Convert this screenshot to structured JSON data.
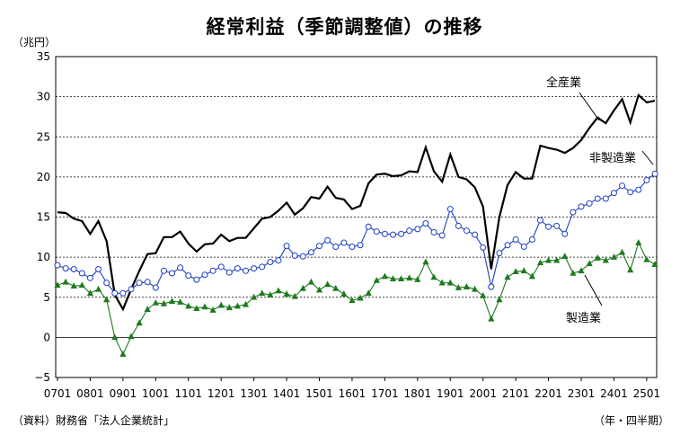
{
  "chart_data": {
    "type": "line",
    "title": "経常利益（季節調整値）の推移",
    "ylabel": "（兆円）",
    "xlabel": "（年・四半期）",
    "source": "（資料）財務省「法人企業統計」",
    "ylim": [
      -5,
      35
    ],
    "yticks": [
      -5,
      0,
      5,
      10,
      15,
      20,
      25,
      30,
      35
    ],
    "x_tick_labels": [
      "0701",
      "0801",
      "0901",
      "1001",
      "1101",
      "1201",
      "1301",
      "1401",
      "1501",
      "1601",
      "1701",
      "1801",
      "1901",
      "2001",
      "2101",
      "2201",
      "2301",
      "2401",
      "2501"
    ],
    "x": [
      "0701",
      "0702",
      "0703",
      "0704",
      "0801",
      "0802",
      "0803",
      "0804",
      "0901",
      "0902",
      "0903",
      "0904",
      "1001",
      "1002",
      "1003",
      "1004",
      "1101",
      "1102",
      "1103",
      "1104",
      "1201",
      "1202",
      "1203",
      "1204",
      "1301",
      "1302",
      "1303",
      "1304",
      "1401",
      "1402",
      "1403",
      "1404",
      "1501",
      "1502",
      "1503",
      "1504",
      "1601",
      "1602",
      "1603",
      "1604",
      "1701",
      "1702",
      "1703",
      "1704",
      "1801",
      "1802",
      "1803",
      "1804",
      "1901",
      "1902",
      "1903",
      "1904",
      "2001",
      "2002",
      "2003",
      "2004",
      "2101",
      "2102",
      "2103",
      "2104",
      "2201",
      "2202",
      "2203",
      "2204",
      "2301",
      "2302",
      "2303",
      "2304",
      "2401",
      "2402",
      "2403",
      "2404",
      "2501",
      "2502"
    ],
    "grid": "horizontal",
    "series": [
      {
        "name": "全産業",
        "color": "#000000",
        "marker": "none",
        "values": [
          15.6,
          15.5,
          14.8,
          14.5,
          12.9,
          14.5,
          12.0,
          5.3,
          3.5,
          6.0,
          8.3,
          10.4,
          10.5,
          12.5,
          12.5,
          13.2,
          11.7,
          10.7,
          11.6,
          11.7,
          12.8,
          12.0,
          12.4,
          12.4,
          13.6,
          14.8,
          15.0,
          15.8,
          16.8,
          15.3,
          16.1,
          17.5,
          17.3,
          18.8,
          17.4,
          17.2,
          16.0,
          16.4,
          19.2,
          20.3,
          20.4,
          20.1,
          20.2,
          20.7,
          20.6,
          23.7,
          20.7,
          19.4,
          22.8,
          20.0,
          19.7,
          18.7,
          16.3,
          8.5,
          15.0,
          19.0,
          20.6,
          19.8,
          19.8,
          23.9,
          23.6,
          23.4,
          23.0,
          23.6,
          24.6,
          26.1,
          27.4,
          26.7,
          28.3,
          29.7,
          26.8,
          30.2,
          29.3,
          29.5
        ]
      },
      {
        "name": "非製造業",
        "color": "#1f3fbf",
        "marker": "circle-open",
        "values": [
          9.0,
          8.6,
          8.5,
          8.0,
          7.4,
          8.5,
          6.8,
          5.5,
          5.5,
          6.0,
          6.8,
          6.9,
          6.2,
          8.3,
          8.0,
          8.7,
          7.7,
          7.2,
          7.8,
          8.3,
          8.8,
          8.1,
          8.6,
          8.3,
          8.6,
          8.8,
          9.4,
          9.6,
          11.4,
          10.2,
          10.1,
          10.6,
          11.4,
          12.1,
          11.3,
          11.8,
          11.3,
          11.5,
          13.8,
          13.2,
          12.9,
          12.8,
          12.9,
          13.3,
          13.5,
          14.2,
          13.1,
          12.7,
          16.0,
          13.9,
          13.3,
          12.8,
          11.2,
          6.3,
          10.5,
          11.5,
          12.2,
          11.3,
          12.2,
          14.6,
          13.8,
          13.9,
          12.9,
          15.6,
          16.3,
          16.7,
          17.3,
          17.3,
          18.0,
          18.9,
          18.1,
          18.4,
          19.6,
          20.4
        ]
      },
      {
        "name": "製造業",
        "color": "#1e7a1e",
        "marker": "triangle-filled",
        "values": [
          6.5,
          6.9,
          6.4,
          6.5,
          5.5,
          6.0,
          4.7,
          0.0,
          -2.1,
          0.1,
          1.8,
          3.5,
          4.3,
          4.2,
          4.5,
          4.4,
          3.9,
          3.6,
          3.8,
          3.4,
          4.0,
          3.7,
          3.9,
          4.1,
          5.0,
          5.5,
          5.3,
          5.8,
          5.4,
          5.1,
          6.1,
          6.9,
          5.9,
          6.6,
          6.1,
          5.4,
          4.6,
          4.9,
          5.5,
          7.1,
          7.6,
          7.3,
          7.3,
          7.4,
          7.2,
          9.4,
          7.5,
          6.8,
          6.8,
          6.2,
          6.3,
          6.0,
          5.2,
          2.3,
          4.7,
          7.5,
          8.2,
          8.3,
          7.6,
          9.3,
          9.6,
          9.6,
          10.1,
          8.0,
          8.3,
          9.2,
          9.9,
          9.6,
          10.0,
          10.6,
          8.4,
          11.8,
          9.7,
          9.1
        ]
      }
    ]
  }
}
